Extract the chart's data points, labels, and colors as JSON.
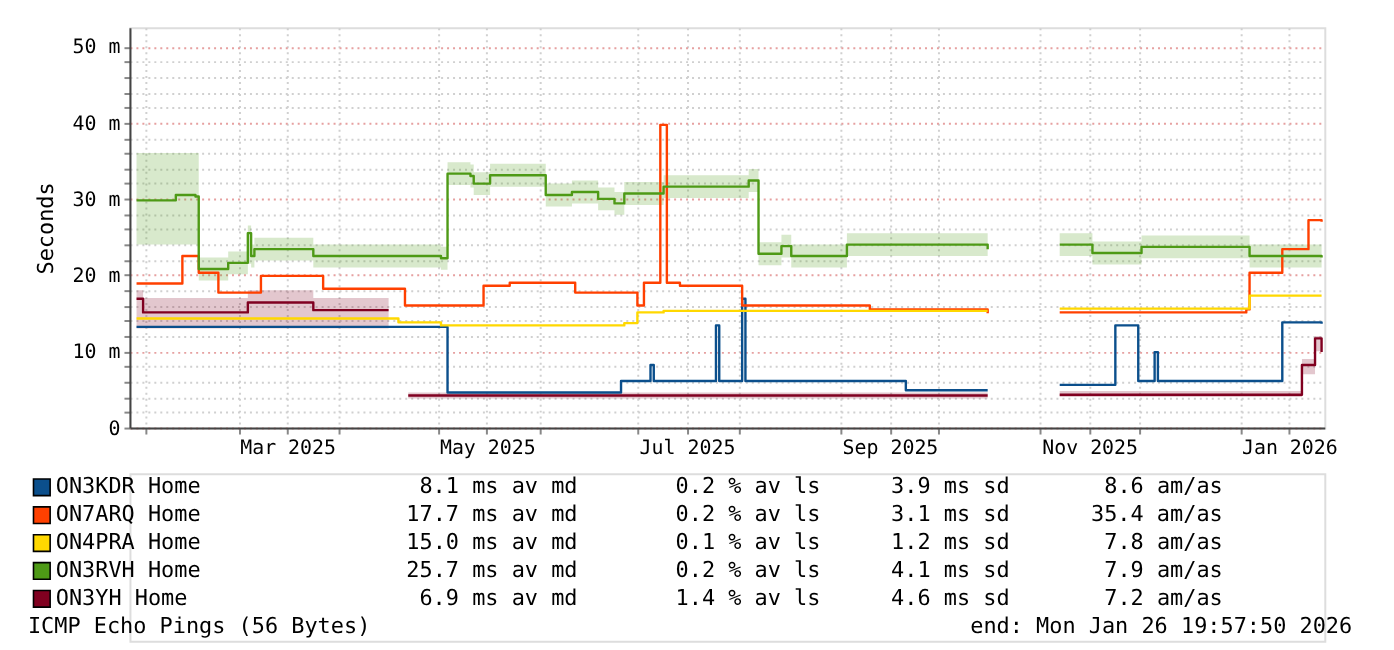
{
  "chart_data": {
    "type": "step",
    "ylabel": "Seconds",
    "xlim": [
      "2025-01-26T19:57",
      "2026-01-26T19:57"
    ],
    "xticks": [
      {
        "value": "2025-02-01",
        "label": null
      },
      {
        "value": "2025-03-01",
        "label": null
      },
      {
        "value": "2025-03-16",
        "label": "Mar 2025"
      },
      {
        "value": "2025-04-01",
        "label": null
      },
      {
        "value": "2025-05-01",
        "label": null
      },
      {
        "value": "2025-05-16",
        "label": "May 2025"
      },
      {
        "value": "2025-06-01",
        "label": null
      },
      {
        "value": "2025-07-01",
        "label": null
      },
      {
        "value": "2025-07-16",
        "label": "Jul 2025"
      },
      {
        "value": "2025-08-01",
        "label": null
      },
      {
        "value": "2025-09-01",
        "label": null
      },
      {
        "value": "2025-09-16",
        "label": "Sep 2025"
      },
      {
        "value": "2025-10-01",
        "label": null
      },
      {
        "value": "2025-11-01",
        "label": null
      },
      {
        "value": "2025-11-16",
        "label": "Nov 2025"
      },
      {
        "value": "2025-12-01",
        "label": null
      },
      {
        "value": "2026-01-01",
        "label": null
      },
      {
        "value": "2026-01-16",
        "label": "Jan 2026"
      }
    ],
    "ylim": [
      0,
      52.5
    ],
    "yticks": [
      0,
      {
        "value": 2,
        "label": null
      },
      {
        "value": 4,
        "label": null
      },
      {
        "value": 6,
        "label": null
      },
      {
        "value": 8,
        "label": null
      },
      {
        "value": 10,
        "label": "10 m"
      },
      {
        "value": 12,
        "label": null
      },
      {
        "value": 14,
        "label": null
      },
      {
        "value": 16,
        "label": null
      },
      {
        "value": 18,
        "label": null
      },
      {
        "value": 20,
        "label": "20 m"
      },
      {
        "value": 22,
        "label": null
      },
      {
        "value": 24,
        "label": null
      },
      {
        "value": 26,
        "label": null
      },
      {
        "value": 28,
        "label": null
      },
      {
        "value": 30,
        "label": "30 m"
      },
      {
        "value": 32,
        "label": null
      },
      {
        "value": 34,
        "label": null
      },
      {
        "value": 36,
        "label": null
      },
      {
        "value": 38,
        "label": null
      },
      {
        "value": 40,
        "label": "40 m"
      },
      {
        "value": 42,
        "label": null
      },
      {
        "value": 44,
        "label": null
      },
      {
        "value": 46,
        "label": null
      },
      {
        "value": 48,
        "label": null
      },
      {
        "value": 50,
        "label": "50 m"
      }
    ],
    "grid": true,
    "legend": "bottom",
    "series": [
      {
        "name": "ON3KDR Home",
        "color": "#0b4f8c",
        "x": [
          "2025-01-29",
          "2025-05-02",
          "2025-05-04",
          "2025-06-22",
          "2025-06-26",
          "2025-07-05",
          "2025-07-06",
          "2025-07-25",
          "2025-07-26",
          "2025-08-02",
          "2025-08-03",
          "2025-09-20",
          "2025-09-21",
          "2025-10-16",
          "2025-10-17",
          "2025-11-07",
          "2025-11-24",
          "2025-11-30",
          "2025-12-01",
          "2025-12-06",
          "2025-12-07",
          "2026-01-14",
          "2026-01-26"
        ],
        "values": [
          13.2,
          13.2,
          4.6,
          4.6,
          6.1,
          8.2,
          6.1,
          13.4,
          6.1,
          16.9,
          6.1,
          6.1,
          4.9,
          4.9,
          null,
          5.6,
          13.4,
          13.4,
          6.1,
          9.9,
          6.1,
          13.8,
          13.6
        ]
      },
      {
        "name": "ON7ARQ Home",
        "color": "#ff4000",
        "x": [
          "2025-01-29",
          "2025-02-10",
          "2025-02-12",
          "2025-02-17",
          "2025-02-23",
          "2025-03-08",
          "2025-03-27",
          "2025-04-21",
          "2025-05-15",
          "2025-05-23",
          "2025-06-12",
          "2025-07-01",
          "2025-07-03",
          "2025-07-08",
          "2025-07-10",
          "2025-07-14",
          "2025-08-02",
          "2025-09-10",
          "2025-10-16",
          "2025-10-17",
          "2025-11-07",
          "2026-01-03",
          "2026-01-04",
          "2026-01-14",
          "2026-01-22",
          "2026-01-26"
        ],
        "values": [
          18.9,
          18.9,
          22.5,
          20.3,
          17.7,
          19.9,
          18.2,
          16.0,
          18.6,
          19.0,
          17.7,
          16.0,
          19.0,
          39.7,
          19.0,
          18.6,
          16.0,
          15.5,
          15.0,
          null,
          15.1,
          15.5,
          20.3,
          23.4,
          27.2,
          27.0
        ]
      },
      {
        "name": "ON4PRA Home",
        "color": "#ffd800",
        "x": [
          "2025-01-29",
          "2025-04-19",
          "2025-05-02",
          "2025-06-27",
          "2025-07-01",
          "2025-07-09",
          "2025-10-16",
          "2025-10-17",
          "2025-11-07",
          "2026-01-03",
          "2026-01-04",
          "2026-01-26"
        ],
        "values": [
          14.3,
          13.8,
          13.4,
          13.7,
          15.1,
          15.3,
          15.3,
          null,
          15.6,
          15.6,
          17.3,
          17.3
        ]
      },
      {
        "name": "ON3RVH Home",
        "color": "#4e9a16",
        "x": [
          "2025-01-29",
          "2025-02-10",
          "2025-02-16",
          "2025-02-17",
          "2025-02-23",
          "2025-02-26",
          "2025-03-03",
          "2025-03-04",
          "2025-03-05",
          "2025-03-06",
          "2025-03-24",
          "2025-05-02",
          "2025-05-04",
          "2025-05-11",
          "2025-05-12",
          "2025-05-17",
          "2025-06-01",
          "2025-06-03",
          "2025-06-11",
          "2025-06-19",
          "2025-06-24",
          "2025-06-27",
          "2025-07-09",
          "2025-07-29",
          "2025-08-04",
          "2025-08-07",
          "2025-08-14",
          "2025-08-17",
          "2025-09-02",
          "2025-09-03",
          "2025-10-16",
          "2025-10-17",
          "2025-11-07",
          "2025-11-17",
          "2025-12-02",
          "2026-01-04",
          "2026-01-26"
        ],
        "values": [
          29.8,
          30.5,
          30.3,
          20.8,
          20.8,
          21.6,
          21.6,
          25.5,
          22.5,
          23.4,
          22.5,
          22.2,
          33.3,
          33.0,
          32.0,
          33.1,
          33.1,
          30.5,
          30.9,
          30.0,
          29.4,
          30.7,
          31.6,
          31.6,
          32.4,
          22.8,
          23.8,
          22.5,
          22.5,
          24.0,
          23.4,
          null,
          24.0,
          22.9,
          23.7,
          22.5,
          22.3
        ],
        "lower": [
          24.0,
          24.0,
          24.0,
          19.3,
          19.3,
          20.1,
          20.1,
          21.5,
          21.0,
          21.9,
          21.0,
          20.7,
          31.8,
          31.5,
          30.5,
          31.6,
          31.6,
          29.0,
          29.4,
          28.5,
          27.9,
          29.2,
          30.1,
          30.1,
          30.9,
          21.3,
          22.3,
          21.0,
          21.0,
          22.5,
          21.9,
          null,
          22.5,
          21.4,
          22.2,
          21.0,
          20.8
        ],
        "upper": [
          36.0,
          36.0,
          36.0,
          22.3,
          22.3,
          23.1,
          23.1,
          26.5,
          24.0,
          24.9,
          24.0,
          23.7,
          34.8,
          34.5,
          33.5,
          34.6,
          34.6,
          32.0,
          32.4,
          31.5,
          30.9,
          32.2,
          33.1,
          33.1,
          33.9,
          24.3,
          25.3,
          24.0,
          24.0,
          25.5,
          24.9,
          null,
          25.5,
          24.4,
          25.2,
          24.0,
          23.8
        ]
      },
      {
        "name": "ON3YH Home",
        "color": "#800020",
        "x": [
          "2025-01-29",
          "2025-01-31",
          "2025-03-04",
          "2025-03-24",
          "2025-04-16",
          "2025-04-19",
          "2025-04-22",
          "2025-10-16",
          "2025-10-17",
          "2025-11-07",
          "2026-01-19",
          "2026-01-20",
          "2026-01-24",
          "2026-01-26"
        ],
        "values": [
          16.9,
          15.1,
          16.4,
          15.4,
          15.4,
          null,
          4.2,
          4.2,
          null,
          4.3,
          4.3,
          8.2,
          11.7,
          9.9
        ],
        "lower": [
          13.0,
          13.0,
          13.0,
          13.0,
          13.0,
          null,
          3.8,
          3.8,
          null,
          4.0,
          4.0,
          7.0,
          10.0,
          9.0
        ],
        "upper": [
          18.0,
          17.0,
          18.0,
          17.0,
          17.0,
          null,
          4.6,
          4.6,
          null,
          4.8,
          4.8,
          9.0,
          12.0,
          11.0
        ]
      }
    ],
    "annotations": [
      "8.1 ms av md",
      "0.2 % av ls",
      "3.9 ms sd",
      "8.6   am/as",
      "17.7 ms av md",
      "0.2 % av ls",
      "3.1 ms sd",
      "35.4   am/as",
      "15.0 ms av md",
      "0.1 % av ls",
      "1.2 ms sd",
      "7.8   am/as",
      "25.7 ms av md",
      "0.2 % av ls",
      "4.1 ms sd",
      "7.9   am/as",
      "6.9 ms av md",
      "1.4 % av ls",
      "4.6 ms sd",
      "7.2   am/as",
      "ICMP Echo Pings (56 Bytes)",
      "end: Mon Jan 26 19:57:50 2026"
    ]
  }
}
